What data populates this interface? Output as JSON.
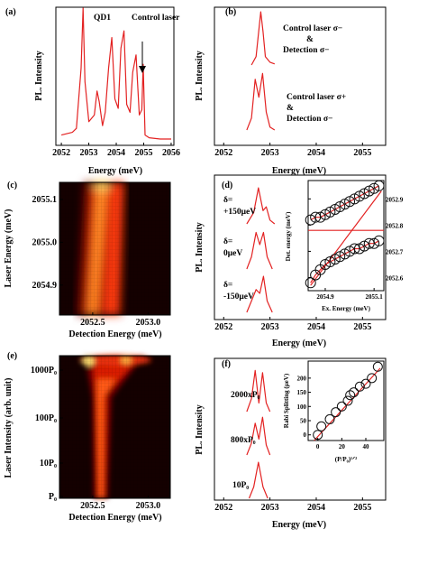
{
  "panels": {
    "a": {
      "label": "(a)",
      "xlabel": "Energy (meV)",
      "ylabel": "PL. Intensity",
      "xticks": [
        "2052",
        "2053",
        "2054",
        "2055",
        "2056"
      ],
      "annotations": [
        "QD1",
        "Control laser"
      ]
    },
    "b": {
      "label": "(b)",
      "xlabel": "Energy (meV)",
      "ylabel": "PL. Intensity",
      "xticks": [
        "2052",
        "2053",
        "2054",
        "2055"
      ],
      "annotations": [
        "Control laser σ−",
        "&",
        "Detection σ−",
        "Control laser σ+",
        "&",
        "Detection σ−"
      ]
    },
    "c": {
      "label": "(c)",
      "xlabel": "Detection  Energy (meV)",
      "ylabel": "Laser Energy (meV)",
      "xticks": [
        "2052.5",
        "2053.0"
      ],
      "yticks": [
        "2055.1",
        "2055.0",
        "2054.9"
      ]
    },
    "d": {
      "label": "(d)",
      "xlabel": "Energy (meV)",
      "ylabel": "PL. Intensity",
      "xticks": [
        "2052",
        "2053",
        "2054",
        "2055"
      ],
      "annotations": [
        "δ=",
        "+150μeV",
        "δ=",
        "0μeV",
        "δ=",
        "-150μeV"
      ],
      "inset": {
        "xlabel": "Ex. Energy (meV)",
        "ylabel": "Det. energy (meV)",
        "xticks": [
          "2054.9",
          "2055.1"
        ],
        "yticks": [
          "2052.9",
          "2052.8",
          "2052.7",
          "2052.6"
        ]
      }
    },
    "e": {
      "label": "(e)",
      "xlabel": "Detection Energy (meV)",
      "ylabel": "Laser Intensity (arb. unit)",
      "xticks": [
        "2052.5",
        "2053.0"
      ],
      "yticks": [
        "1000P₀",
        "100P₀",
        "10P₀",
        "P₀"
      ]
    },
    "f": {
      "label": "(f)",
      "xlabel": "Energy (meV)",
      "ylabel": "PL. Intensity",
      "xticks": [
        "2052",
        "2053",
        "2054",
        "2055"
      ],
      "annotations": [
        "2000xP₀",
        "800xP₀",
        "10P₀"
      ],
      "inset": {
        "xlabel": "(P/P₀)¹ᐟ²",
        "ylabel": "Rabi Splitting (μeV)",
        "xticks": [
          "0",
          "20",
          "40"
        ],
        "yticks": [
          "0",
          "50",
          "100",
          "150",
          "200"
        ]
      }
    }
  },
  "chart_data": [
    {
      "panel": "a",
      "type": "line",
      "xlim": [
        2051.8,
        2056.1
      ],
      "series": [
        {
          "x": [
            2052.0,
            2052.2,
            2052.4,
            2052.55,
            2052.72,
            2052.79,
            2052.86,
            2053.0,
            2053.2,
            2053.3,
            2053.38,
            2053.5,
            2053.6,
            2053.72,
            2053.84,
            2053.95,
            2054.07,
            2054.17,
            2054.28,
            2054.38,
            2054.5,
            2054.6,
            2054.72,
            2054.84,
            2054.93,
            2054.98,
            2055.05,
            2055.2,
            2055.6,
            2056.0
          ],
          "y": [
            0.05,
            0.06,
            0.07,
            0.1,
            0.55,
            1.0,
            0.45,
            0.15,
            0.2,
            0.38,
            0.3,
            0.12,
            0.22,
            0.55,
            0.78,
            0.32,
            0.25,
            0.7,
            0.83,
            0.28,
            0.22,
            0.52,
            0.65,
            0.2,
            0.24,
            0.58,
            0.05,
            0.03,
            0.02,
            0.02
          ]
        }
      ]
    },
    {
      "panel": "b",
      "type": "line",
      "xlim": [
        2051.8,
        2055.5
      ],
      "series": [
        {
          "name": "Control laser σ−",
          "x": [
            2052.6,
            2052.7,
            2052.8,
            2052.85,
            2052.9,
            2053.0,
            2053.1
          ],
          "y": [
            0.0,
            0.15,
            0.95,
            0.6,
            0.15,
            0.05,
            0.02
          ]
        },
        {
          "name": "Control laser σ+",
          "x": [
            2052.5,
            2052.6,
            2052.68,
            2052.76,
            2052.84,
            2052.92,
            2053.0,
            2053.1
          ],
          "y": [
            0.0,
            0.2,
            0.85,
            0.55,
            0.95,
            0.3,
            0.05,
            0.0
          ]
        }
      ]
    },
    {
      "panel": "c",
      "type": "heatmap",
      "xlim": [
        2052.2,
        2053.2
      ],
      "ylim": [
        2054.83,
        2055.14
      ],
      "branches": [
        {
          "laser": [
            2054.83,
            2055.14
          ],
          "detection": [
            2052.62,
            2052.76
          ]
        },
        {
          "laser": [
            2054.83,
            2055.14
          ],
          "detection": [
            2052.75,
            2052.95
          ]
        }
      ]
    },
    {
      "panel": "d",
      "type": "line",
      "xlim": [
        2051.8,
        2055.5
      ],
      "series": [
        {
          "name": "δ=+150μeV",
          "x": [
            2052.5,
            2052.65,
            2052.75,
            2052.85,
            2052.92,
            2053.0,
            2053.1
          ],
          "y": [
            0.0,
            0.3,
            0.95,
            0.35,
            0.45,
            0.1,
            0.0
          ]
        },
        {
          "name": "δ=0μeV",
          "x": [
            2052.5,
            2052.6,
            2052.7,
            2052.78,
            2052.86,
            2052.94,
            2053.05
          ],
          "y": [
            0.0,
            0.3,
            0.9,
            0.6,
            0.9,
            0.3,
            0.0
          ]
        },
        {
          "name": "δ=-150μeV",
          "x": [
            2052.5,
            2052.6,
            2052.7,
            2052.78,
            2052.86,
            2052.94,
            2053.05
          ],
          "y": [
            0.0,
            0.3,
            0.6,
            0.5,
            0.95,
            0.3,
            0.0
          ]
        }
      ],
      "inset": {
        "type": "scatter",
        "xlim": [
          2054.83,
          2055.14
        ],
        "ylim": [
          2052.55,
          2052.97
        ],
        "upper": {
          "x": [
            2054.84,
            2054.86,
            2054.88,
            2054.9,
            2054.92,
            2054.94,
            2054.96,
            2054.98,
            2055.0,
            2055.02,
            2055.04,
            2055.06,
            2055.08,
            2055.1,
            2055.12
          ],
          "y": [
            2052.82,
            2052.83,
            2052.83,
            2052.84,
            2052.85,
            2052.86,
            2052.87,
            2052.88,
            2052.89,
            2052.9,
            2052.91,
            2052.92,
            2052.93,
            2052.94,
            2052.95
          ]
        },
        "lower": {
          "x": [
            2054.84,
            2054.86,
            2054.88,
            2054.9,
            2054.92,
            2054.94,
            2054.96,
            2054.98,
            2055.0,
            2055.02,
            2055.04,
            2055.06,
            2055.08,
            2055.1,
            2055.12
          ],
          "y": [
            2052.58,
            2052.61,
            2052.63,
            2052.65,
            2052.66,
            2052.67,
            2052.68,
            2052.69,
            2052.7,
            2052.71,
            2052.71,
            2052.72,
            2052.73,
            2052.73,
            2052.74
          ]
        },
        "flat_line_y": 2052.78,
        "diagonal_line": {
          "x": [
            2054.84,
            2055.13
          ],
          "y": [
            2052.57,
            2052.93
          ]
        }
      }
    },
    {
      "panel": "e",
      "type": "heatmap",
      "xlim": [
        2052.2,
        2053.2
      ],
      "rows": [
        "P₀",
        "10P₀",
        "100P₀",
        "1000P₀"
      ],
      "center_detection": 2052.77
    },
    {
      "panel": "f",
      "type": "line",
      "xlim": [
        2051.8,
        2055.5
      ],
      "series": [
        {
          "name": "2000xP₀",
          "x": [
            2052.5,
            2052.6,
            2052.68,
            2052.76,
            2052.84,
            2052.92,
            2053.0
          ],
          "y": [
            0.0,
            0.3,
            0.95,
            0.2,
            0.9,
            0.2,
            0.0
          ]
        },
        {
          "name": "800xP₀",
          "x": [
            2052.5,
            2052.6,
            2052.68,
            2052.76,
            2052.84,
            2052.92,
            2053.0
          ],
          "y": [
            0.0,
            0.3,
            0.8,
            0.4,
            0.95,
            0.25,
            0.0
          ]
        },
        {
          "name": "10P₀",
          "x": [
            2052.55,
            2052.65,
            2052.75,
            2052.85,
            2052.95
          ],
          "y": [
            0.0,
            0.3,
            0.95,
            0.3,
            0.0
          ]
        }
      ],
      "inset": {
        "type": "scatter",
        "xlim": [
          -8,
          55
        ],
        "ylim": [
          -20,
          260
        ],
        "x": [
          0,
          3,
          10,
          15,
          20,
          25,
          27,
          30,
          35,
          40,
          45,
          50
        ],
        "y": [
          0,
          30,
          55,
          80,
          100,
          120,
          140,
          150,
          170,
          180,
          200,
          240
        ],
        "fit": {
          "x": [
            -3,
            52
          ],
          "y": [
            -20,
            235
          ]
        }
      }
    }
  ]
}
